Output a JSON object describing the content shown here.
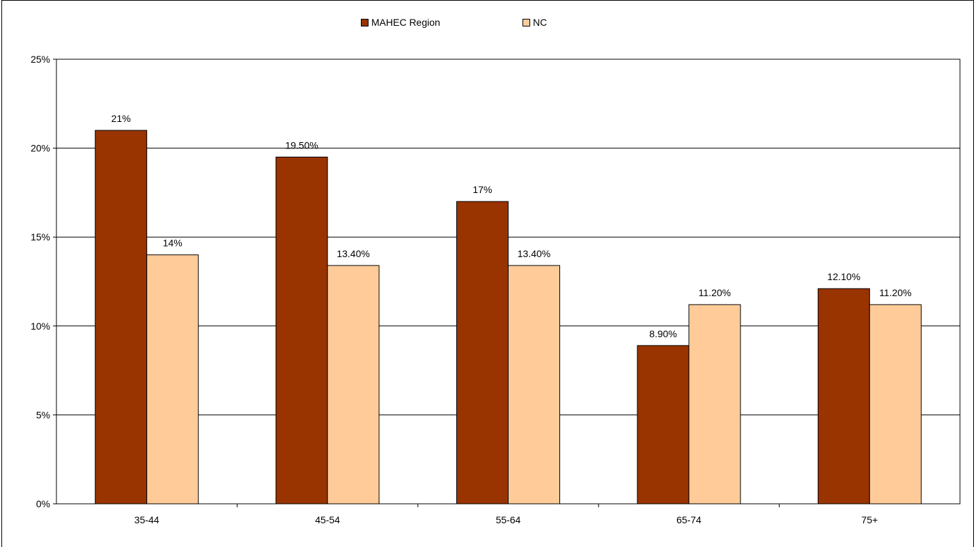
{
  "chart_data": {
    "type": "bar",
    "categories": [
      "35-44",
      "45-54",
      "55-64",
      "65-74",
      "75+"
    ],
    "series": [
      {
        "name": "MAHEC Region",
        "values": [
          21,
          19.5,
          17,
          8.9,
          12.1
        ],
        "labels": [
          "21%",
          "19.50%",
          "17%",
          "8.90%",
          "12.10%"
        ],
        "color": "#993300"
      },
      {
        "name": "NC",
        "values": [
          14,
          13.4,
          13.4,
          11.2,
          11.2
        ],
        "labels": [
          "14%",
          "13.40%",
          "13.40%",
          "11.20%",
          "11.20%"
        ],
        "color": "#FFCC99"
      }
    ],
    "ylim": [
      0,
      25
    ],
    "yticks": [
      0,
      5,
      10,
      15,
      20,
      25
    ],
    "ytick_labels": [
      "0%",
      "5%",
      "10%",
      "15%",
      "20%",
      "25%"
    ],
    "grid": true,
    "legend_position": "top-center",
    "title": "",
    "xlabel": "",
    "ylabel": ""
  }
}
